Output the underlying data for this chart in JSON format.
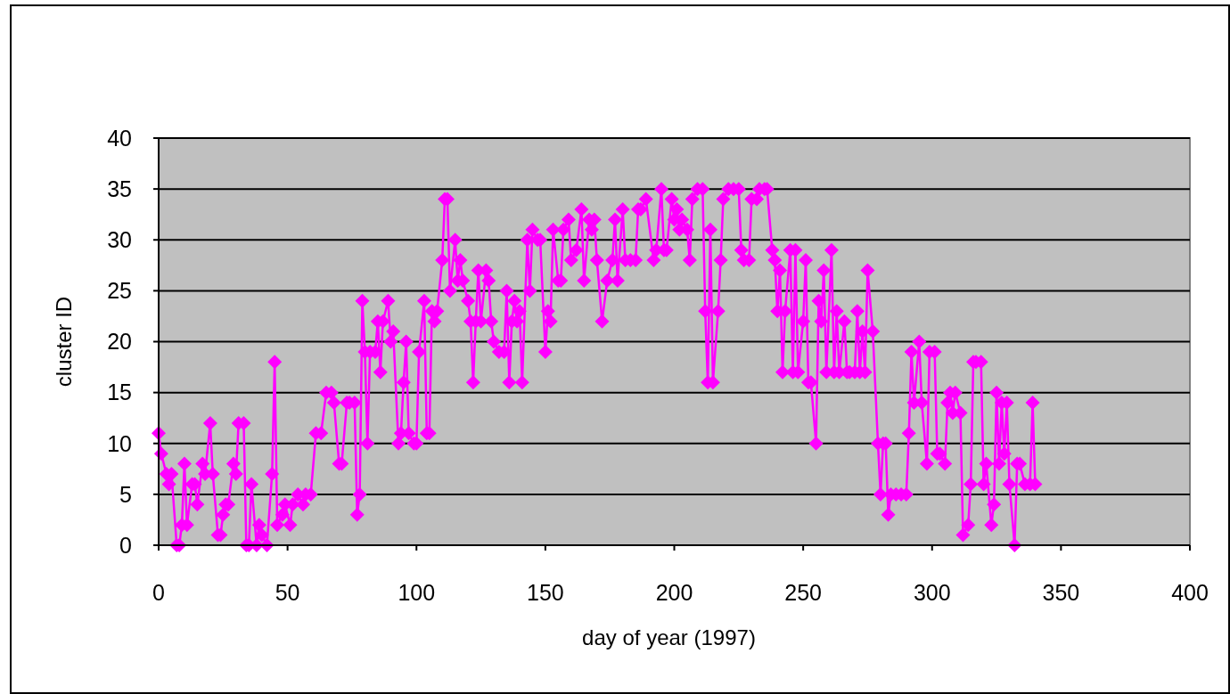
{
  "chart_data": {
    "type": "line",
    "xlabel": "day of year (1997)",
    "ylabel": "cluster ID",
    "xlim": [
      0,
      400
    ],
    "xticks": [
      0,
      50,
      100,
      150,
      200,
      250,
      300,
      350,
      400
    ],
    "ylim": [
      0,
      40
    ],
    "yticks": [
      0,
      5,
      10,
      15,
      20,
      25,
      30,
      35,
      40
    ],
    "grid": "y",
    "marker": "diamond",
    "line_style": "solid",
    "x": [
      0,
      1,
      3,
      4,
      5,
      7,
      8,
      9,
      10,
      11,
      13,
      14,
      15,
      17,
      18,
      20,
      21,
      23,
      24,
      25,
      26,
      27,
      29,
      30,
      31,
      33,
      34,
      35,
      36,
      38,
      39,
      40,
      42,
      44,
      45,
      46,
      48,
      49,
      51,
      52,
      54,
      56,
      57,
      59,
      61,
      63,
      65,
      67,
      68,
      70,
      71,
      73,
      74,
      76,
      77,
      78,
      79,
      80,
      81,
      82,
      84,
      85,
      86,
      87,
      89,
      90,
      91,
      93,
      94,
      95,
      96,
      97,
      99,
      100,
      101,
      103,
      104,
      105,
      106,
      107,
      108,
      110,
      111,
      112,
      113,
      115,
      116,
      117,
      118,
      120,
      121,
      122,
      123,
      124,
      125,
      127,
      128,
      129,
      130,
      132,
      134,
      135,
      136,
      137,
      138,
      139,
      140,
      141,
      143,
      144,
      145,
      147,
      148,
      150,
      151,
      152,
      153,
      155,
      156,
      157,
      159,
      160,
      162,
      164,
      165,
      167,
      168,
      169,
      170,
      172,
      174,
      176,
      177,
      178,
      180,
      181,
      183,
      185,
      186,
      187,
      189,
      192,
      193,
      195,
      196,
      197,
      199,
      200,
      201,
      202,
      203,
      205,
      206,
      207,
      209,
      211,
      212,
      213,
      214,
      215,
      217,
      218,
      219,
      221,
      223,
      225,
      226,
      227,
      229,
      230,
      232,
      233,
      235,
      236,
      238,
      239,
      240,
      241,
      242,
      243,
      245,
      246,
      247,
      248,
      250,
      251,
      252,
      253,
      255,
      256,
      257,
      258,
      259,
      261,
      262,
      263,
      264,
      266,
      267,
      268,
      270,
      271,
      272,
      273,
      274,
      275,
      277,
      279,
      280,
      281,
      282,
      283,
      284,
      286,
      288,
      290,
      291,
      292,
      293,
      295,
      296,
      298,
      299,
      301,
      302,
      303,
      305,
      306,
      307,
      308,
      309,
      311,
      312,
      314,
      315,
      316,
      317,
      319,
      320,
      321,
      323,
      324,
      325,
      326,
      327,
      328,
      329,
      330,
      332,
      333,
      334,
      336,
      338,
      339,
      340
    ],
    "series": [
      {
        "color": "#ff00ff",
        "values": [
          11,
          9,
          7,
          6,
          7,
          0,
          0,
          2,
          8,
          2,
          6,
          6,
          4,
          8,
          7,
          12,
          7,
          1,
          1,
          3,
          4,
          4,
          8,
          7,
          12,
          12,
          0,
          0,
          6,
          0,
          2,
          1,
          0,
          7,
          18,
          2,
          3,
          4,
          2,
          4,
          5,
          4,
          5,
          5,
          11,
          11,
          15,
          15,
          14,
          8,
          8,
          14,
          14,
          14,
          3,
          5,
          24,
          19,
          10,
          19,
          19,
          22,
          17,
          22,
          24,
          20,
          21,
          10,
          11,
          16,
          20,
          11,
          10,
          10,
          19,
          24,
          11,
          11,
          23,
          22,
          23,
          28,
          34,
          34,
          25,
          30,
          26,
          28,
          26,
          24,
          22,
          16,
          22,
          27,
          22,
          27,
          26,
          22,
          20,
          19,
          19,
          25,
          16,
          22,
          24,
          22,
          23,
          16,
          30,
          25,
          31,
          30,
          30,
          19,
          23,
          22,
          31,
          26,
          26,
          31,
          32,
          28,
          29,
          33,
          26,
          32,
          31,
          32,
          28,
          22,
          26,
          28,
          32,
          26,
          33,
          28,
          28,
          28,
          33,
          33,
          34,
          28,
          29,
          35,
          29,
          29,
          34,
          32,
          33,
          31,
          32,
          31,
          28,
          34,
          35,
          35,
          23,
          16,
          31,
          16,
          23,
          28,
          34,
          35,
          35,
          35,
          29,
          28,
          28,
          34,
          34,
          35,
          35,
          35,
          29,
          28,
          23,
          27,
          17,
          23,
          29,
          17,
          29,
          17,
          22,
          28,
          16,
          16,
          10,
          24,
          22,
          27,
          17,
          29,
          17,
          23,
          17,
          22,
          17,
          17,
          17,
          23,
          17,
          21,
          17,
          27,
          21,
          10,
          5,
          10,
          10,
          3,
          5,
          5,
          5,
          5,
          11,
          19,
          14,
          20,
          14,
          8,
          19,
          19,
          9,
          9,
          8,
          14,
          15,
          13,
          15,
          13,
          1,
          2,
          6,
          18,
          18,
          18,
          6,
          8,
          2,
          4,
          15,
          8,
          14,
          9,
          14,
          6,
          0,
          8,
          8,
          6,
          6,
          14,
          6
        ]
      }
    ]
  }
}
